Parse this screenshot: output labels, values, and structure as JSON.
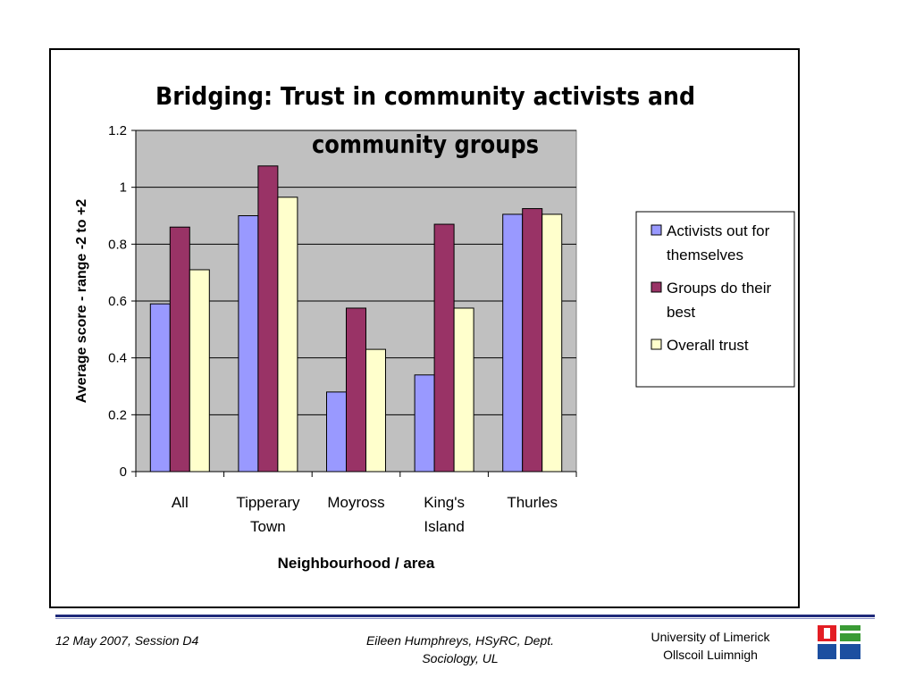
{
  "chart_data": {
    "type": "bar",
    "title": "Bridging: Trust in community activists and community groups",
    "title_lines": [
      "Bridging: Trust in community activists and",
      "community groups"
    ],
    "categories": [
      "All",
      "Tipperary Town",
      "Moyross",
      "King's Island",
      "Thurles"
    ],
    "category_lines": [
      [
        "All"
      ],
      [
        "Tipperary",
        "Town"
      ],
      [
        "Moyross"
      ],
      [
        "King's",
        "Island"
      ],
      [
        "Thurles"
      ]
    ],
    "series": [
      {
        "name": "Activists out for themselves",
        "legend_lines": [
          "Activists out for",
          "themselves"
        ],
        "values": [
          0.59,
          0.9,
          0.28,
          0.34,
          0.905
        ],
        "color": "#9999ff"
      },
      {
        "name": "Groups do their best",
        "legend_lines": [
          "Groups do their",
          "best"
        ],
        "values": [
          0.86,
          1.075,
          0.575,
          0.87,
          0.925
        ],
        "color": "#993366"
      },
      {
        "name": "Overall trust",
        "legend_lines": [
          "Overall trust"
        ],
        "values": [
          0.71,
          0.965,
          0.43,
          0.575,
          0.905
        ],
        "color": "#ffffcc"
      }
    ],
    "xlabel": "Neighbourhood / area",
    "ylabel": "Average score - range -2 to +2",
    "ylim": [
      0,
      1.2
    ],
    "yticks": [
      0,
      0.2,
      0.4,
      0.6,
      0.8,
      1,
      1.2
    ],
    "ytick_labels": [
      "0",
      "0.2",
      "0.4",
      "0.6",
      "0.8",
      "1",
      "1.2"
    ],
    "plot_background": "#c0c0c0",
    "grid": true,
    "legend_position": "right"
  },
  "footer": {
    "date_session": "12 May 2007, Session D4",
    "author_line1": "Eileen Humphreys, HSyRC, Dept.",
    "author_line2": "Sociology, UL",
    "university_line1": "University of Limerick",
    "university_line2": "Ollscoil Luimnigh"
  },
  "colors": {
    "footer_rule": "#1f2a7a",
    "logo_red": "#e31e24",
    "logo_green": "#3a9b35",
    "logo_blue": "#1c4fa0"
  },
  "logo": {
    "icon": "university-of-limerick-logo-icon"
  }
}
